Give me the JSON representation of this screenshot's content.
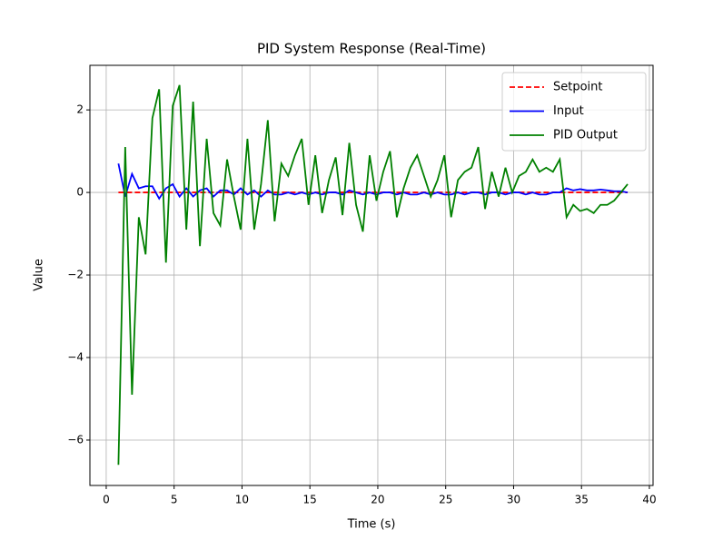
{
  "chart_data": {
    "type": "line",
    "title": "PID System Response (Real-Time)",
    "x_label": "Time (s)",
    "y_label": "Value",
    "x": [
      0.9,
      1.4,
      1.9,
      2.4,
      2.9,
      3.4,
      3.9,
      4.4,
      4.9,
      5.4,
      5.9,
      6.4,
      6.9,
      7.4,
      7.9,
      8.4,
      8.9,
      9.4,
      9.9,
      10.4,
      10.9,
      11.4,
      11.9,
      12.4,
      12.9,
      13.4,
      13.9,
      14.4,
      14.9,
      15.4,
      15.9,
      16.4,
      16.9,
      17.4,
      17.9,
      18.4,
      18.9,
      19.4,
      19.9,
      20.4,
      20.9,
      21.4,
      21.9,
      22.4,
      22.9,
      23.4,
      23.9,
      24.4,
      24.9,
      25.4,
      25.9,
      26.4,
      26.9,
      27.4,
      27.9,
      28.4,
      28.9,
      29.4,
      29.9,
      30.4,
      30.9,
      31.4,
      31.9,
      32.4,
      32.9,
      33.4,
      33.9,
      34.4,
      34.9,
      35.4,
      35.9,
      36.4,
      36.9,
      37.4,
      37.9,
      38.4
    ],
    "series": [
      {
        "name": "Setpoint",
        "color": "#ff0000",
        "dashed": true,
        "values": [
          0,
          0,
          0,
          0,
          0,
          0,
          0,
          0,
          0,
          0,
          0,
          0,
          0,
          0,
          0,
          0,
          0,
          0,
          0,
          0,
          0,
          0,
          0,
          0,
          0,
          0,
          0,
          0,
          0,
          0,
          0,
          0,
          0,
          0,
          0,
          0,
          0,
          0,
          0,
          0,
          0,
          0,
          0,
          0,
          0,
          0,
          0,
          0,
          0,
          0,
          0,
          0,
          0,
          0,
          0,
          0,
          0,
          0,
          0,
          0,
          0,
          0,
          0,
          0,
          0,
          0,
          0,
          0,
          0,
          0,
          0,
          0,
          0,
          0,
          0,
          0
        ]
      },
      {
        "name": "Input",
        "color": "#0000ff",
        "dashed": false,
        "values": [
          0.7,
          -0.1,
          0.45,
          0.1,
          0.15,
          0.15,
          -0.15,
          0.1,
          0.2,
          -0.1,
          0.1,
          -0.1,
          0.05,
          0.1,
          -0.1,
          0.05,
          0.05,
          -0.05,
          0.1,
          -0.05,
          0.05,
          -0.1,
          0.05,
          -0.05,
          -0.05,
          0.0,
          -0.05,
          0.0,
          -0.05,
          0.0,
          -0.05,
          0.0,
          0.0,
          -0.05,
          0.05,
          0.0,
          -0.05,
          0.0,
          -0.05,
          0.0,
          0.0,
          -0.05,
          0.0,
          -0.05,
          -0.05,
          0.0,
          -0.05,
          0.0,
          -0.05,
          -0.05,
          0.0,
          -0.05,
          0.0,
          0.0,
          -0.05,
          0.0,
          0.0,
          -0.05,
          0.0,
          0.0,
          -0.05,
          0.0,
          -0.05,
          -0.05,
          0.0,
          0.0,
          0.1,
          0.05,
          0.08,
          0.05,
          0.05,
          0.07,
          0.05,
          0.03,
          0.03,
          0.0
        ]
      },
      {
        "name": "PID Output",
        "color": "#008000",
        "dashed": false,
        "values": [
          -6.6,
          1.1,
          -4.9,
          -0.6,
          -1.5,
          1.8,
          2.5,
          -1.7,
          2.1,
          2.6,
          -0.9,
          2.2,
          -1.3,
          1.3,
          -0.5,
          -0.8,
          0.8,
          -0.1,
          -0.9,
          1.3,
          -0.9,
          0.2,
          1.75,
          -0.7,
          0.7,
          0.4,
          0.9,
          1.3,
          -0.3,
          0.9,
          -0.5,
          0.3,
          0.85,
          -0.55,
          1.2,
          -0.3,
          -0.95,
          0.9,
          -0.2,
          0.5,
          1.0,
          -0.6,
          0.1,
          0.6,
          0.9,
          0.4,
          -0.1,
          0.3,
          0.9,
          -0.6,
          0.3,
          0.5,
          0.6,
          1.1,
          -0.4,
          0.5,
          -0.1,
          0.6,
          0.0,
          0.4,
          0.5,
          0.8,
          0.5,
          0.6,
          0.5,
          0.8,
          -0.6,
          -0.3,
          -0.45,
          -0.4,
          -0.5,
          -0.3,
          -0.3,
          -0.2,
          0.0,
          0.2
        ]
      }
    ],
    "xlim": [
      -1.2,
      40.27
    ],
    "ylim": [
      -7.1,
      3.08
    ],
    "xticks": [
      0,
      5,
      10,
      15,
      20,
      25,
      30,
      35,
      40
    ],
    "yticks": [
      {
        "value": -6,
        "label": "−6"
      },
      {
        "value": -4,
        "label": "−4"
      },
      {
        "value": -2,
        "label": "−2"
      },
      0,
      2
    ],
    "grid": true,
    "legend": "upper right"
  }
}
